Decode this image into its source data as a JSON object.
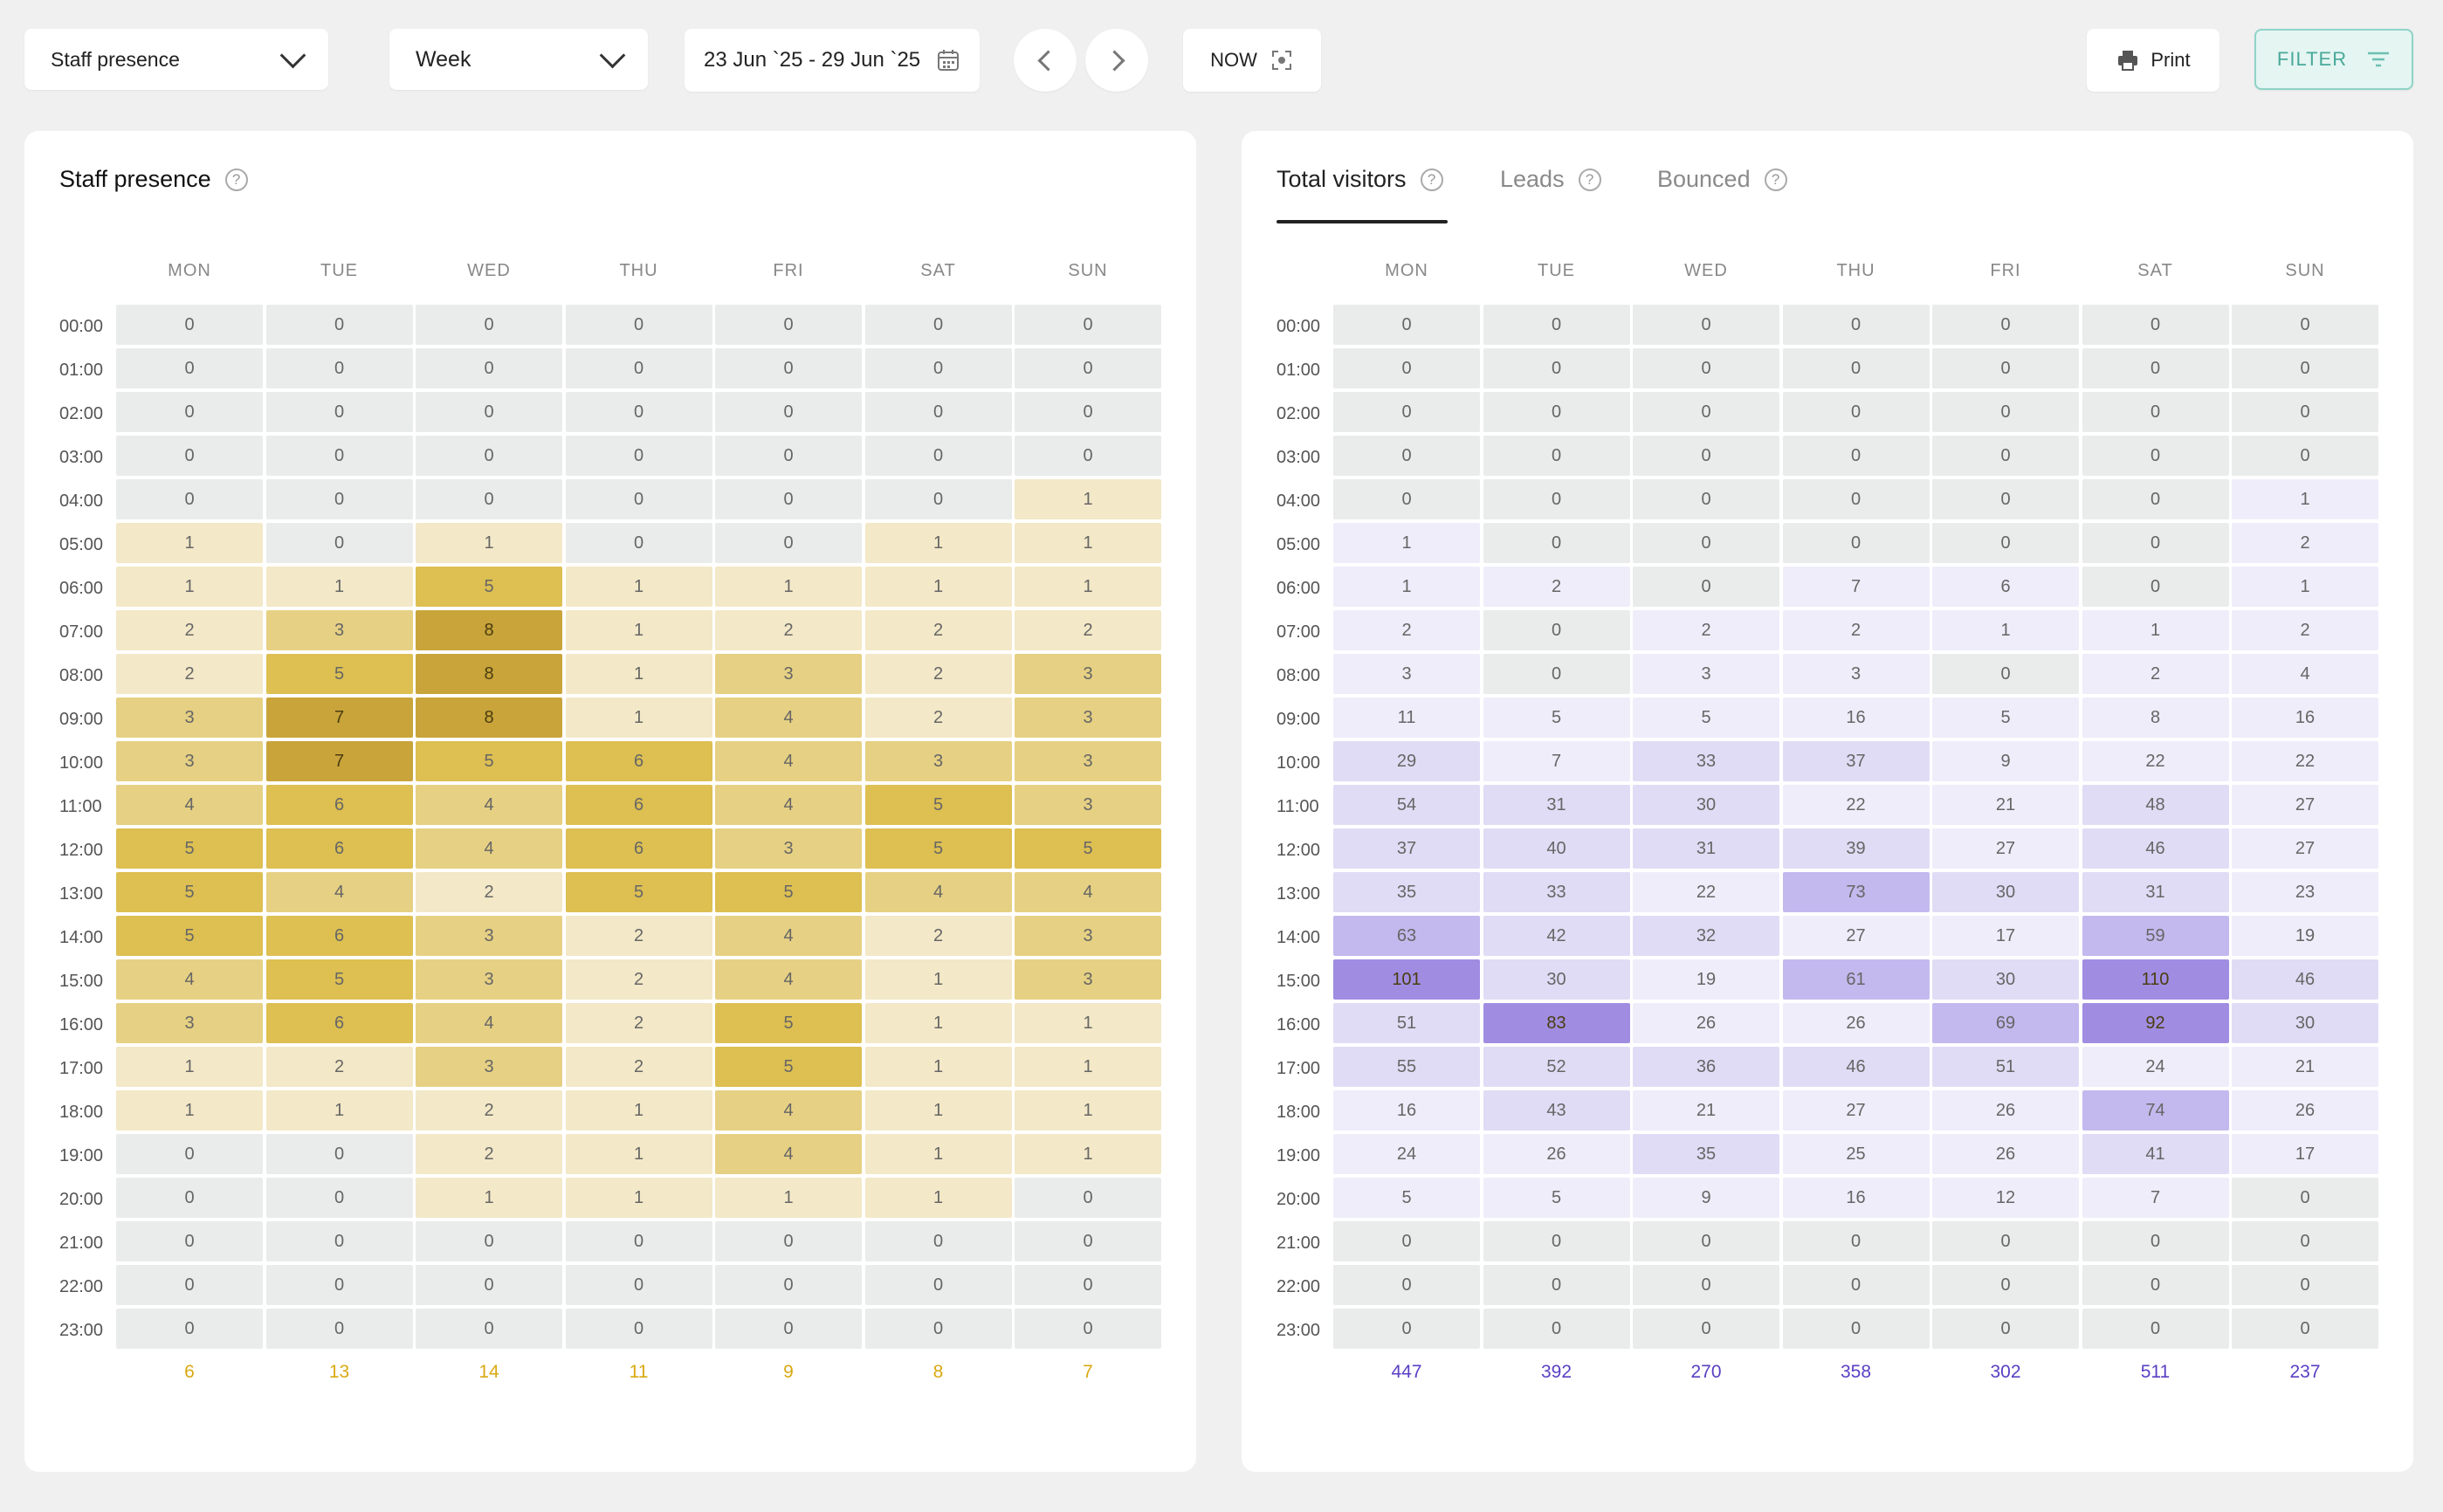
{
  "toolbar": {
    "view_select": "Staff presence",
    "period_select": "Week",
    "date_range": "23 Jun `25 - 29 Jun `25",
    "now_label": "NOW",
    "print_label": "Print",
    "filter_label": "FILTER"
  },
  "days": [
    "MON",
    "TUE",
    "WED",
    "THU",
    "FRI",
    "SAT",
    "SUN"
  ],
  "hours": [
    "00:00",
    "01:00",
    "02:00",
    "03:00",
    "04:00",
    "05:00",
    "06:00",
    "07:00",
    "08:00",
    "09:00",
    "10:00",
    "11:00",
    "12:00",
    "13:00",
    "14:00",
    "15:00",
    "16:00",
    "17:00",
    "18:00",
    "19:00",
    "20:00",
    "21:00",
    "22:00",
    "23:00"
  ],
  "staff": {
    "title": "Staff presence",
    "colors": {
      "zero": "#e9eceb",
      "l1": "#f3e8c7",
      "l2": "#e6d083",
      "l3": "#ddbf52",
      "l4": "#c9a43a",
      "total": "#d9a912"
    },
    "values": [
      [
        0,
        0,
        0,
        0,
        0,
        0,
        0
      ],
      [
        0,
        0,
        0,
        0,
        0,
        0,
        0
      ],
      [
        0,
        0,
        0,
        0,
        0,
        0,
        0
      ],
      [
        0,
        0,
        0,
        0,
        0,
        0,
        0
      ],
      [
        0,
        0,
        0,
        0,
        0,
        0,
        1
      ],
      [
        1,
        0,
        1,
        0,
        0,
        1,
        1
      ],
      [
        1,
        1,
        5,
        1,
        1,
        1,
        1
      ],
      [
        2,
        3,
        8,
        1,
        2,
        2,
        2
      ],
      [
        2,
        5,
        8,
        1,
        3,
        2,
        3
      ],
      [
        3,
        7,
        8,
        1,
        4,
        2,
        3
      ],
      [
        3,
        7,
        5,
        6,
        4,
        3,
        3
      ],
      [
        4,
        6,
        4,
        6,
        4,
        5,
        3
      ],
      [
        5,
        6,
        4,
        6,
        3,
        5,
        5
      ],
      [
        5,
        4,
        2,
        5,
        5,
        4,
        4
      ],
      [
        5,
        6,
        3,
        2,
        4,
        2,
        3
      ],
      [
        4,
        5,
        3,
        2,
        4,
        1,
        3
      ],
      [
        3,
        6,
        4,
        2,
        5,
        1,
        1
      ],
      [
        1,
        2,
        3,
        2,
        5,
        1,
        1
      ],
      [
        1,
        1,
        2,
        1,
        4,
        1,
        1
      ],
      [
        0,
        0,
        2,
        1,
        4,
        1,
        1
      ],
      [
        0,
        0,
        1,
        1,
        1,
        1,
        0
      ],
      [
        0,
        0,
        0,
        0,
        0,
        0,
        0
      ],
      [
        0,
        0,
        0,
        0,
        0,
        0,
        0
      ],
      [
        0,
        0,
        0,
        0,
        0,
        0,
        0
      ]
    ],
    "totals": [
      "6",
      "13",
      "14",
      "11",
      "9",
      "8",
      "7"
    ]
  },
  "visitors": {
    "tabs": [
      "Total visitors",
      "Leads",
      "Bounced"
    ],
    "colors": {
      "zero": "#e9eceb",
      "l1": "#efedfa",
      "l2": "#e1dcf5",
      "l3": "#c4b9ee",
      "l4": "#a08de2",
      "total": "#5a3fc4"
    },
    "values": [
      [
        0,
        0,
        0,
        0,
        0,
        0,
        0
      ],
      [
        0,
        0,
        0,
        0,
        0,
        0,
        0
      ],
      [
        0,
        0,
        0,
        0,
        0,
        0,
        0
      ],
      [
        0,
        0,
        0,
        0,
        0,
        0,
        0
      ],
      [
        0,
        0,
        0,
        0,
        0,
        0,
        1
      ],
      [
        1,
        0,
        0,
        0,
        0,
        0,
        2
      ],
      [
        1,
        2,
        0,
        7,
        6,
        0,
        1
      ],
      [
        2,
        0,
        2,
        2,
        1,
        1,
        2
      ],
      [
        3,
        0,
        3,
        3,
        0,
        2,
        4
      ],
      [
        11,
        5,
        5,
        16,
        5,
        8,
        16
      ],
      [
        29,
        7,
        33,
        37,
        9,
        22,
        22
      ],
      [
        54,
        31,
        30,
        22,
        21,
        48,
        27
      ],
      [
        37,
        40,
        31,
        39,
        27,
        46,
        27
      ],
      [
        35,
        33,
        22,
        73,
        30,
        31,
        23
      ],
      [
        63,
        42,
        32,
        27,
        17,
        59,
        19
      ],
      [
        101,
        30,
        19,
        61,
        30,
        110,
        46
      ],
      [
        51,
        83,
        26,
        26,
        69,
        92,
        30
      ],
      [
        55,
        52,
        36,
        46,
        51,
        24,
        21
      ],
      [
        16,
        43,
        21,
        27,
        26,
        74,
        26
      ],
      [
        24,
        26,
        35,
        25,
        26,
        41,
        17
      ],
      [
        5,
        5,
        9,
        16,
        12,
        7,
        0
      ],
      [
        0,
        0,
        0,
        0,
        0,
        0,
        0
      ],
      [
        0,
        0,
        0,
        0,
        0,
        0,
        0
      ],
      [
        0,
        0,
        0,
        0,
        0,
        0,
        0
      ]
    ],
    "totals": [
      "447",
      "392",
      "270",
      "358",
      "302",
      "511",
      "237"
    ]
  }
}
